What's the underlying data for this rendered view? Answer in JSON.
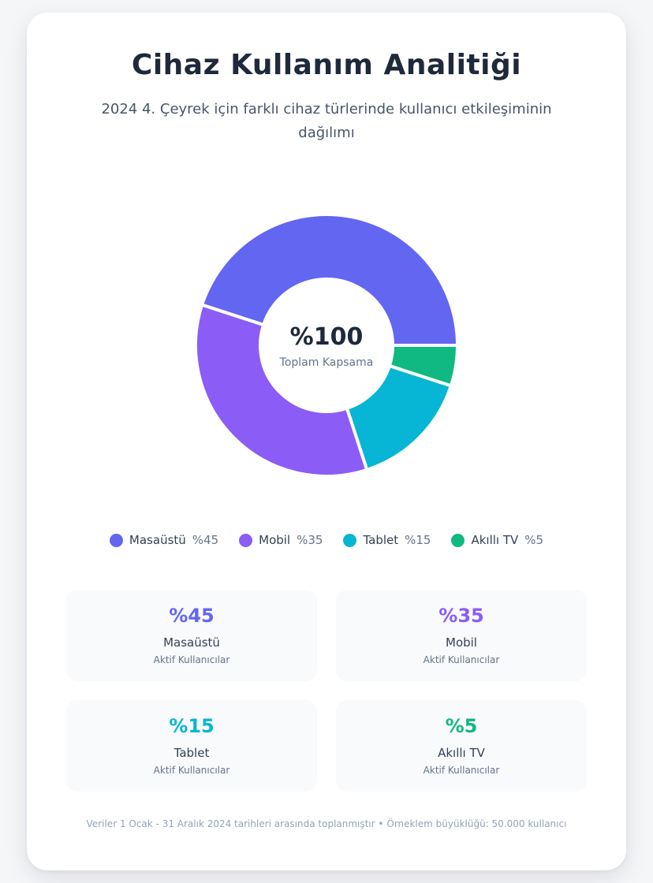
{
  "title": "Cihaz Kullanım Analitiği",
  "subtitle": "2024 4. Çeyrek için farklı cihaz türlerinde kullanıcı etkileşiminin dağılımı",
  "center": {
    "value": "%100",
    "label": "Toplam Kapsama"
  },
  "chart_data": {
    "type": "pie",
    "donut": true,
    "categories": [
      "Masaüstü",
      "Mobil",
      "Tablet",
      "Akıllı TV"
    ],
    "values": [
      45,
      35,
      15,
      5
    ],
    "value_labels": [
      "%45",
      "%35",
      "%15",
      "%5"
    ],
    "colors": [
      "#6366f1",
      "#8b5cf6",
      "#06b6d4",
      "#10b981"
    ],
    "legend_position": "bottom"
  },
  "legend": [
    {
      "name": "Masaüstü",
      "value": "%45",
      "color": "#6366f1"
    },
    {
      "name": "Mobil",
      "value": "%35",
      "color": "#8b5cf6"
    },
    {
      "name": "Tablet",
      "value": "%15",
      "color": "#06b6d4"
    },
    {
      "name": "Akıllı TV",
      "value": "%5",
      "color": "#10b981"
    }
  ],
  "stats": [
    {
      "value": "%45",
      "label": "Masaüstü",
      "sub": "Aktif Kullanıcılar",
      "color": "#6366f1"
    },
    {
      "value": "%35",
      "label": "Mobil",
      "sub": "Aktif Kullanıcılar",
      "color": "#8b5cf6"
    },
    {
      "value": "%15",
      "label": "Tablet",
      "sub": "Aktif Kullanıcılar",
      "color": "#06b6d4"
    },
    {
      "value": "%5",
      "label": "Akıllı TV",
      "sub": "Aktif Kullanıcılar",
      "color": "#10b981"
    }
  ],
  "footer": "Veriler 1 Ocak - 31 Aralık 2024 tarihleri arasında toplanmıştır • Örneklem büyüklüğü: 50.000 kullanıcı"
}
